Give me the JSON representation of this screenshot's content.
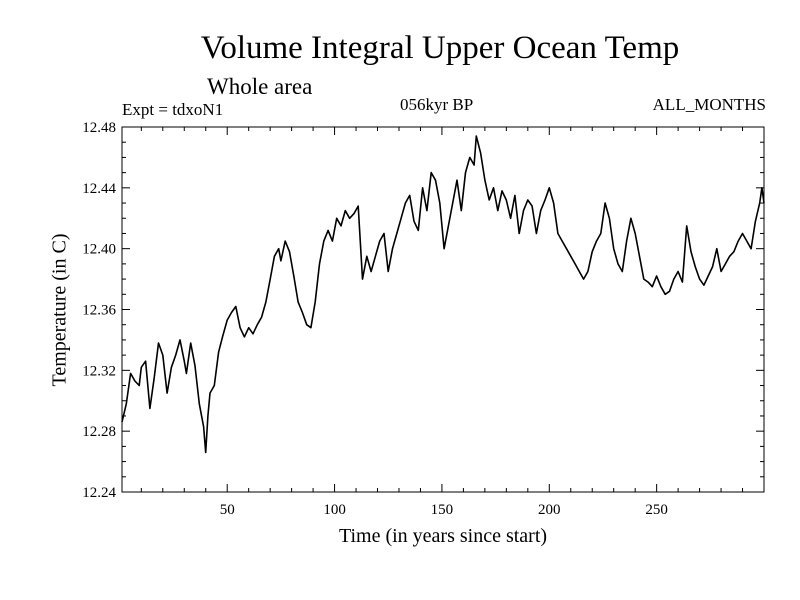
{
  "chart_data": {
    "type": "line",
    "title": "Volume Integral Upper Ocean Temp",
    "subtitle": "Whole area",
    "annotations": {
      "left": "Expt = tdxoN1",
      "center": "056kyr BP",
      "right": "ALL_MONTHS"
    },
    "xlabel": "Time (in years since start)",
    "ylabel": "Temperature (in C)",
    "xlim": [
      1,
      300
    ],
    "ylim": [
      12.24,
      12.48
    ],
    "xticks": [
      50,
      100,
      150,
      200,
      250
    ],
    "yticks": [
      12.24,
      12.28,
      12.32,
      12.36,
      12.4,
      12.44,
      12.48
    ],
    "grid": false,
    "series": [
      {
        "name": "Temperature",
        "x": [
          1,
          3,
          5,
          7,
          9,
          10,
          12,
          14,
          16,
          18,
          20,
          22,
          24,
          26,
          28,
          30,
          31,
          33,
          35,
          37,
          39,
          40,
          41,
          42,
          44,
          46,
          48,
          50,
          52,
          54,
          56,
          58,
          60,
          62,
          64,
          66,
          68,
          70,
          72,
          74,
          75,
          77,
          79,
          81,
          83,
          85,
          87,
          89,
          91,
          93,
          95,
          97,
          99,
          101,
          103,
          105,
          107,
          109,
          111,
          113,
          115,
          117,
          119,
          121,
          123,
          125,
          127,
          129,
          131,
          133,
          135,
          137,
          139,
          141,
          143,
          145,
          147,
          149,
          151,
          153,
          155,
          157,
          159,
          161,
          163,
          165,
          166,
          168,
          170,
          172,
          174,
          176,
          178,
          180,
          182,
          184,
          186,
          188,
          190,
          192,
          194,
          196,
          198,
          200,
          202,
          204,
          206,
          208,
          210,
          212,
          214,
          216,
          218,
          220,
          222,
          224,
          226,
          228,
          230,
          232,
          234,
          236,
          238,
          240,
          242,
          244,
          246,
          248,
          250,
          252,
          254,
          256,
          258,
          260,
          262,
          264,
          266,
          268,
          270,
          272,
          274,
          276,
          278,
          280,
          282,
          284,
          286,
          288,
          290,
          292,
          294,
          296,
          298,
          299,
          300
        ],
        "values": [
          12.286,
          12.298,
          12.318,
          12.313,
          12.31,
          12.322,
          12.326,
          12.295,
          12.315,
          12.338,
          12.33,
          12.305,
          12.322,
          12.33,
          12.34,
          12.326,
          12.318,
          12.338,
          12.323,
          12.298,
          12.283,
          12.266,
          12.29,
          12.305,
          12.31,
          12.332,
          12.343,
          12.353,
          12.358,
          12.362,
          12.348,
          12.342,
          12.348,
          12.344,
          12.35,
          12.355,
          12.365,
          12.38,
          12.395,
          12.4,
          12.392,
          12.405,
          12.398,
          12.382,
          12.365,
          12.358,
          12.35,
          12.348,
          12.365,
          12.39,
          12.405,
          12.412,
          12.405,
          12.42,
          12.415,
          12.425,
          12.42,
          12.423,
          12.428,
          12.38,
          12.395,
          12.385,
          12.395,
          12.405,
          12.41,
          12.385,
          12.4,
          12.41,
          12.42,
          12.43,
          12.435,
          12.418,
          12.412,
          12.44,
          12.425,
          12.45,
          12.445,
          12.43,
          12.4,
          12.415,
          12.43,
          12.445,
          12.425,
          12.45,
          12.46,
          12.455,
          12.474,
          12.463,
          12.445,
          12.432,
          12.44,
          12.425,
          12.438,
          12.432,
          12.42,
          12.435,
          12.41,
          12.425,
          12.432,
          12.428,
          12.41,
          12.425,
          12.432,
          12.44,
          12.43,
          12.41,
          12.405,
          12.4,
          12.395,
          12.39,
          12.385,
          12.38,
          12.385,
          12.398,
          12.405,
          12.41,
          12.43,
          12.42,
          12.4,
          12.39,
          12.385,
          12.405,
          12.42,
          12.41,
          12.395,
          12.38,
          12.378,
          12.375,
          12.382,
          12.375,
          12.37,
          12.372,
          12.38,
          12.385,
          12.378,
          12.415,
          12.398,
          12.388,
          12.38,
          12.376,
          12.382,
          12.388,
          12.4,
          12.385,
          12.39,
          12.395,
          12.398,
          12.405,
          12.41,
          12.405,
          12.4,
          12.418,
          12.43,
          12.44,
          12.43
        ]
      }
    ]
  }
}
